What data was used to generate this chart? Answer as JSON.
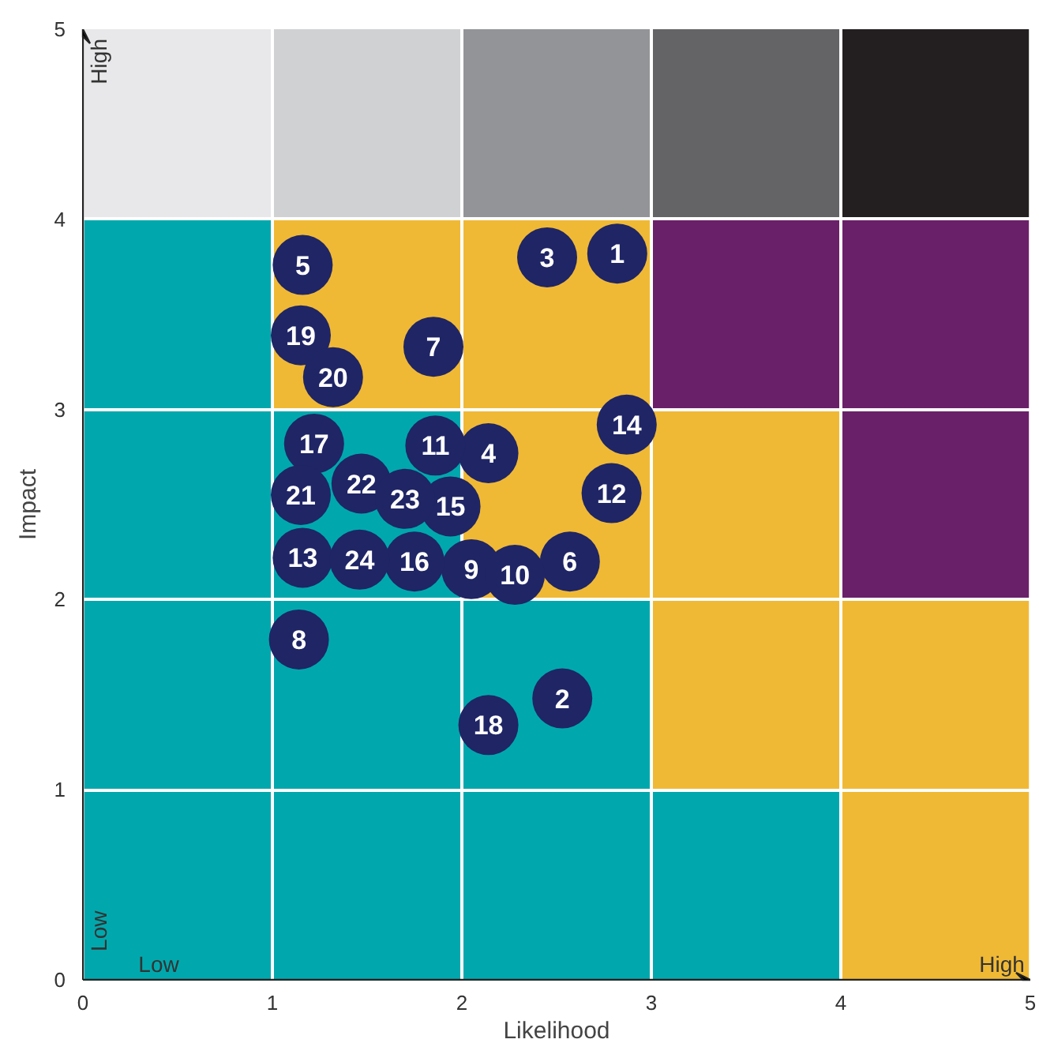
{
  "chart_data": {
    "type": "scatter",
    "xlabel": "Likelihood",
    "ylabel": "Impact",
    "xlim": [
      0,
      5
    ],
    "ylim": [
      0,
      5
    ],
    "xticks": [
      0,
      1,
      2,
      3,
      4,
      5
    ],
    "yticks": [
      0,
      1,
      2,
      3,
      4,
      5
    ],
    "grid": true,
    "marker": "circle",
    "stacked": true,
    "annotations": [
      "Low",
      "High",
      "Low",
      "High",
      {
        "text": "1",
        "x": 2.82,
        "y": 3.82
      },
      {
        "text": "2",
        "x": 2.53,
        "y": 1.48
      },
      {
        "text": "3",
        "x": 2.45,
        "y": 3.8
      },
      {
        "text": "4",
        "x": 2.14,
        "y": 2.77
      },
      {
        "text": "5",
        "x": 1.16,
        "y": 3.76
      },
      {
        "text": "6",
        "x": 2.57,
        "y": 2.2
      },
      {
        "text": "7",
        "x": 1.85,
        "y": 3.33
      },
      {
        "text": "8",
        "x": 1.14,
        "y": 1.79
      },
      {
        "text": "9",
        "x": 2.05,
        "y": 2.16
      },
      {
        "text": "10",
        "x": 2.28,
        "y": 2.13
      },
      {
        "text": "11",
        "x": 1.86,
        "y": 2.81
      },
      {
        "text": "12",
        "x": 2.79,
        "y": 2.56
      },
      {
        "text": "13",
        "x": 1.16,
        "y": 2.22
      },
      {
        "text": "14",
        "x": 2.87,
        "y": 2.92
      },
      {
        "text": "15",
        "x": 1.94,
        "y": 2.49
      },
      {
        "text": "16",
        "x": 1.75,
        "y": 2.2
      },
      {
        "text": "17",
        "x": 1.22,
        "y": 2.82
      },
      {
        "text": "18",
        "x": 2.14,
        "y": 1.34
      },
      {
        "text": "19",
        "x": 1.15,
        "y": 3.39
      },
      {
        "text": "20",
        "x": 1.32,
        "y": 3.17
      },
      {
        "text": "21",
        "x": 1.15,
        "y": 2.55
      },
      {
        "text": "22",
        "x": 1.47,
        "y": 2.61
      },
      {
        "text": "23",
        "x": 1.7,
        "y": 2.53
      },
      {
        "text": "24",
        "x": 1.46,
        "y": 2.21
      }
    ],
    "series": [
      {
        "type": "bar",
        "x": [
          0.5,
          1.5,
          2.5,
          3.5,
          4.5
        ],
        "values": [
          1,
          1,
          1,
          1,
          1
        ],
        "colors": [
          "#00a8ad",
          "#00a8ad",
          "#00a8ad",
          "#00a8ad",
          "#f0b935"
        ]
      },
      {
        "type": "bar",
        "x": [
          0.5,
          1.5,
          2.5,
          3.5,
          4.5
        ],
        "values": [
          1,
          1,
          1,
          1,
          1
        ],
        "colors": [
          "#00a8ad",
          "#00a8ad",
          "#00a8ad",
          "#f0b935",
          "#f0b935"
        ]
      },
      {
        "type": "bar",
        "x": [
          0.5,
          1.5,
          2.5,
          3.5,
          4.5
        ],
        "values": [
          1,
          1,
          1,
          1,
          1
        ],
        "colors": [
          "#00a8ad",
          "#00a8ad",
          "#f0b935",
          "#f0b935",
          "#6a2068"
        ]
      },
      {
        "type": "bar",
        "x": [
          0.5,
          1.5,
          2.5,
          3.5,
          4.5
        ],
        "values": [
          1,
          1,
          1,
          1,
          1
        ],
        "colors": [
          "#00a8ad",
          "#f0b935",
          "#f0b935",
          "#6a2068",
          "#6a2068"
        ]
      },
      {
        "type": "bar",
        "x": [
          0.5,
          1.5,
          2.5,
          3.5,
          4.5
        ],
        "values": [
          1,
          1,
          1,
          1,
          1
        ],
        "colors": [
          "#e8e8ea",
          "#d0d1d3",
          "#939497",
          "#646466",
          "#231f20"
        ]
      },
      {
        "color": "#1f2565",
        "x": [
          2.82,
          2.53,
          2.45,
          2.14,
          1.16,
          2.57,
          1.85,
          1.14,
          2.05,
          2.28,
          1.86,
          2.79,
          1.16,
          2.87,
          1.94,
          1.75,
          1.22,
          2.14,
          1.15,
          1.32,
          1.15,
          1.47,
          1.7,
          1.46
        ],
        "values": [
          3.82,
          1.48,
          3.8,
          2.77,
          3.76,
          2.2,
          3.33,
          1.79,
          2.16,
          2.13,
          2.81,
          2.56,
          2.22,
          2.92,
          2.49,
          2.2,
          2.82,
          1.34,
          3.39,
          3.17,
          2.55,
          2.61,
          2.53,
          2.21
        ]
      }
    ]
  }
}
